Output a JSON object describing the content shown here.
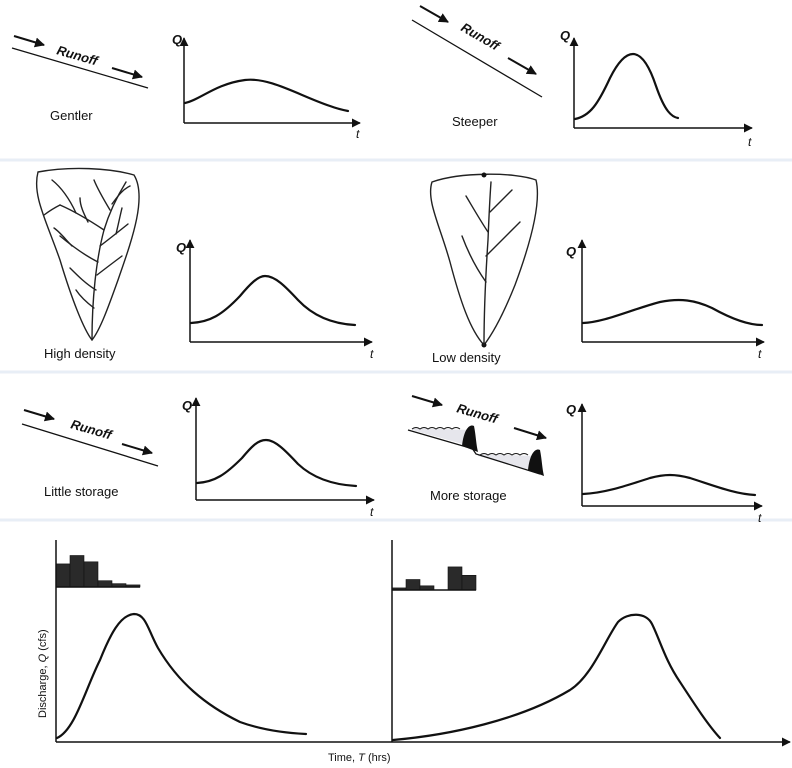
{
  "panels": {
    "slope_gentle": {
      "caption": "Gentler",
      "runoff": "Runoff",
      "q": "Q",
      "t": "t"
    },
    "slope_steep": {
      "caption": "Steeper",
      "runoff": "Runoff",
      "q": "Q",
      "t": "t"
    },
    "density_high": {
      "caption": "High density",
      "q": "Q",
      "t": "t"
    },
    "density_low": {
      "caption": "Low density",
      "q": "Q",
      "t": "t"
    },
    "storage_little": {
      "caption": "Little storage",
      "runoff": "Runoff",
      "q": "Q",
      "t": "t"
    },
    "storage_more": {
      "caption": "More storage",
      "runoff": "Runoff",
      "q": "Q",
      "t": "t"
    }
  },
  "bottom": {
    "ylabel_prefix": "Discharge, ",
    "ylabel_var": "Q",
    "ylabel_suffix": " (cfs)",
    "xlabel_prefix": "Time, ",
    "xlabel_var": "T",
    "xlabel_suffix": " (hrs)",
    "rain_early": [
      0.55,
      0.75,
      0.6,
      0.15,
      0.08,
      0.05
    ],
    "rain_late": [
      0.05,
      0.25,
      0.1,
      0.0,
      0.55,
      0.35
    ]
  },
  "colors": {
    "ink": "#111111",
    "bars": "#2a2a2a",
    "water_fill": "#e6e6ec"
  }
}
